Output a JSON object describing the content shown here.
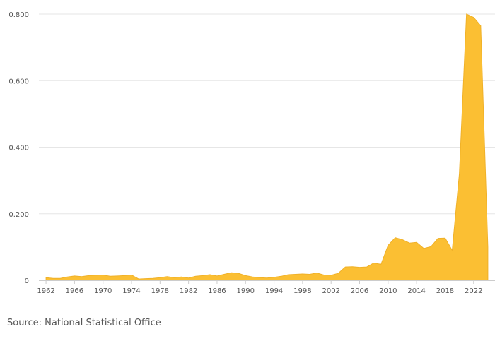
{
  "source_text": "Source: National Statistical Office",
  "chart_data": {
    "type": "area",
    "x": [
      1962,
      1963,
      1964,
      1965,
      1966,
      1967,
      1968,
      1969,
      1970,
      1971,
      1972,
      1973,
      1974,
      1975,
      1976,
      1977,
      1978,
      1979,
      1980,
      1981,
      1982,
      1983,
      1984,
      1985,
      1986,
      1987,
      1988,
      1989,
      1990,
      1991,
      1992,
      1993,
      1994,
      1995,
      1996,
      1997,
      1998,
      1999,
      2000,
      2001,
      2002,
      2003,
      2004,
      2005,
      2006,
      2007,
      2008,
      2009,
      2010,
      2011,
      2012,
      2013,
      2014,
      2015,
      2016,
      2017,
      2018,
      2019,
      2020,
      2021,
      2022,
      2023,
      2024
    ],
    "series": [
      {
        "values": [
          0.008,
          0.006,
          0.006,
          0.01,
          0.013,
          0.011,
          0.014,
          0.015,
          0.016,
          0.012,
          0.013,
          0.014,
          0.016,
          0.004,
          0.005,
          0.006,
          0.008,
          0.011,
          0.008,
          0.01,
          0.007,
          0.012,
          0.014,
          0.017,
          0.013,
          0.018,
          0.023,
          0.021,
          0.014,
          0.01,
          0.008,
          0.007,
          0.009,
          0.012,
          0.017,
          0.018,
          0.019,
          0.018,
          0.022,
          0.016,
          0.015,
          0.021,
          0.04,
          0.041,
          0.039,
          0.04,
          0.052,
          0.048,
          0.105,
          0.128,
          0.122,
          0.112,
          0.114,
          0.096,
          0.101,
          0.126,
          0.127,
          0.09,
          0.32,
          0.8,
          0.79,
          0.765,
          0.1
        ]
      }
    ],
    "xticks": [
      1962,
      1966,
      1970,
      1974,
      1978,
      1982,
      1986,
      1990,
      1994,
      1998,
      2002,
      2006,
      2010,
      2014,
      2018,
      2022
    ],
    "yticks": [
      "0",
      "0.200",
      "0.400",
      "0.600",
      "0.800"
    ],
    "ytick_values": [
      0,
      0.2,
      0.4,
      0.6,
      0.8
    ],
    "xlim": [
      1961,
      2025
    ],
    "ylim": [
      0,
      0.8
    ],
    "grid": true,
    "colors": {
      "fill": "#fbbf33",
      "stroke": "#f0b128",
      "grid": "#e6e6e6",
      "text": "#555555"
    }
  }
}
